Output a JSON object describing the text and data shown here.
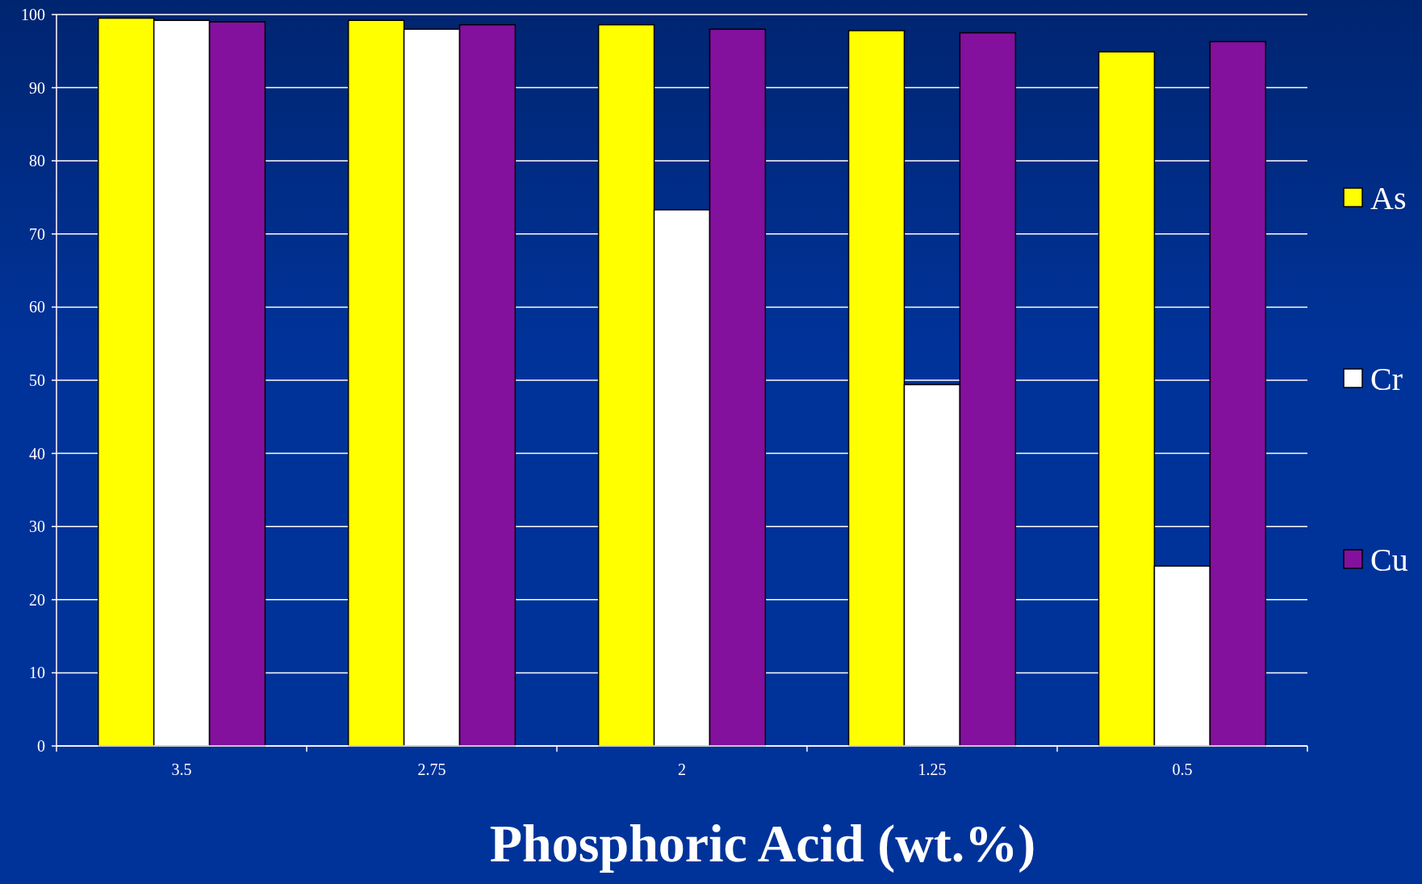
{
  "chart_data": {
    "type": "bar",
    "xlabel": "Phosphoric Acid (wt.%)",
    "categories": [
      "3.5",
      "2.75",
      "2",
      "1.25",
      "0.5"
    ],
    "series": [
      {
        "name": "As",
        "color": "#ffff00",
        "values": [
          99.5,
          99.2,
          98.6,
          97.8,
          94.9
        ]
      },
      {
        "name": "Cr",
        "color": "#ffffff",
        "values": [
          99.2,
          98.0,
          73.3,
          49.4,
          24.6
        ]
      },
      {
        "name": "Cu",
        "color": "#84109e",
        "values": [
          99.0,
          98.6,
          98.0,
          97.5,
          96.3
        ]
      }
    ],
    "ylim": [
      0,
      100
    ],
    "yticks": [
      0,
      10,
      20,
      30,
      40,
      50,
      60,
      70,
      80,
      90,
      100
    ],
    "grid": "y",
    "legend": "right"
  }
}
